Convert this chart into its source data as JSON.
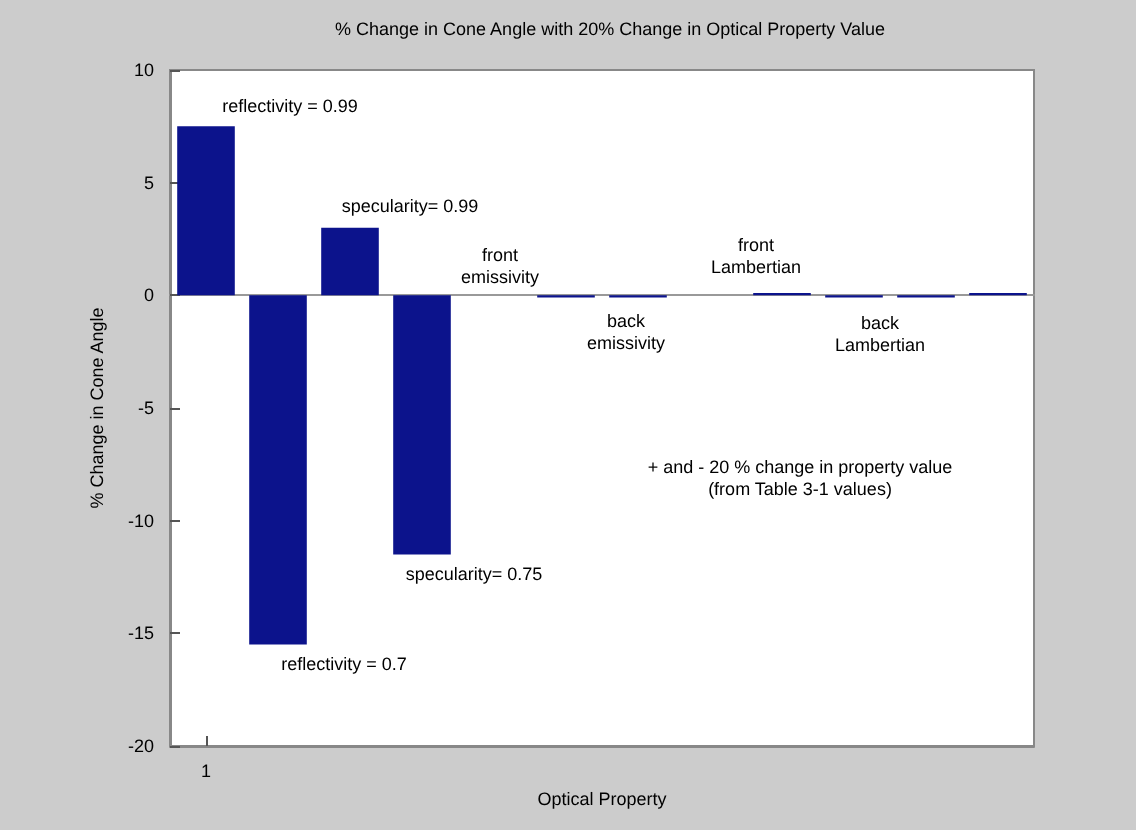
{
  "chart_data": {
    "type": "bar",
    "title": "% Change in Cone Angle with 20% Change in Optical Property Value",
    "xlabel": "Optical Property",
    "ylabel": "% Change in Cone Angle",
    "categories": [
      "1",
      null,
      null,
      null,
      null,
      null,
      null,
      null,
      null,
      null,
      null,
      null
    ],
    "values": [
      7.5,
      -15.5,
      3,
      -11.5,
      0,
      -0.1,
      -0.1,
      0,
      0.1,
      -0.1,
      -0.1,
      0.1
    ],
    "color": "#0c138c",
    "ylim": [
      -20,
      10
    ],
    "yticks": [
      -20,
      -15,
      -10,
      -5,
      0,
      5,
      10
    ],
    "annotations": [
      "reflectivity = 0.99",
      "specularity= 0.99",
      "front\nemissivity",
      "back\nemissivity",
      "front\nLambertian",
      "back\nLambertian",
      "specularity= 0.75",
      "reflectivity = 0.7",
      "+ and - 20 % change in property value\n(from Table 3-1 values)"
    ]
  }
}
